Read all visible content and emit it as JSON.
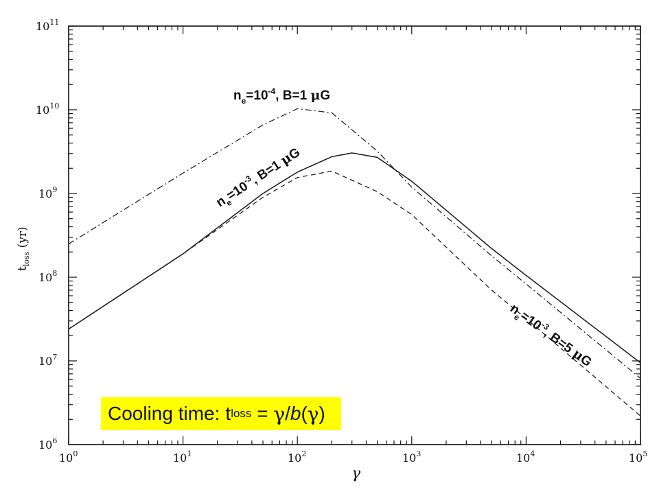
{
  "chart_data": {
    "type": "line",
    "xscale": "log",
    "yscale": "log",
    "xlim": [
      1,
      100000
    ],
    "ylim": [
      1000000,
      100000000000
    ],
    "xlabel": "γ",
    "ylabel": "t",
    "ylabel_sub": "loss",
    "ylabel_unit": " (yr)",
    "grid": false,
    "x_ticks": [
      {
        "base": "10",
        "exp": "0"
      },
      {
        "base": "10",
        "exp": "1"
      },
      {
        "base": "10",
        "exp": "2"
      },
      {
        "base": "10",
        "exp": "3"
      },
      {
        "base": "10",
        "exp": "4"
      },
      {
        "base": "10",
        "exp": "5"
      }
    ],
    "y_ticks": [
      {
        "base": "10",
        "exp": "6"
      },
      {
        "base": "10",
        "exp": "7"
      },
      {
        "base": "10",
        "exp": "8"
      },
      {
        "base": "10",
        "exp": "9"
      },
      {
        "base": "10",
        "exp": "10"
      },
      {
        "base": "10",
        "exp": "11"
      }
    ],
    "series": [
      {
        "style": "dashdot",
        "x": [
          1,
          10,
          50,
          100,
          200,
          500,
          1000,
          5000,
          10000,
          100000
        ],
        "y": [
          250000000,
          1750000000,
          6600000000,
          10300000000,
          9200000000,
          3200000000,
          1190000000,
          180000000,
          83000000,
          6200000
        ]
      },
      {
        "style": "solid",
        "x": [
          1,
          10,
          50,
          100,
          200,
          300,
          500,
          1000,
          5000,
          10000,
          100000
        ],
        "y": [
          24000000,
          190000000,
          1000000000,
          1800000000,
          2750000000,
          3050000000,
          2700000000,
          1400000000,
          220000000,
          105000000,
          9500000
        ]
      },
      {
        "style": "dashed",
        "x": [
          1,
          10,
          50,
          100,
          200,
          500,
          1000,
          5000,
          10000,
          100000
        ],
        "y": [
          24000000,
          190000000,
          900000000,
          1550000000,
          1850000000,
          1050000000,
          560000000,
          70000000,
          32000000,
          2200000
        ]
      }
    ],
    "annotations": [
      {
        "n": "n",
        "sub": "e",
        "eq": "=10",
        "exp": "-4",
        "rest": ", B=1 ",
        "mu": "μ",
        "unit": "G"
      },
      {
        "n": "n",
        "sub": "e",
        "eq": "=10",
        "exp": "-3",
        "rest": ", B=1 ",
        "mu": "μ",
        "unit": "G"
      },
      {
        "n": "n",
        "sub": "e",
        "eq": "=10",
        "exp": "-3",
        "rest": ", B=5 ",
        "mu": "μ",
        "unit": "G"
      }
    ]
  },
  "callout": {
    "prefix": "Cooling time:",
    "t": "t",
    "sub": "loss",
    "eq": " = ",
    "gamma1": "γ",
    "slash": "/",
    "b": "b",
    "paren_open": "(",
    "gamma2": "γ",
    "paren_close": ")"
  }
}
